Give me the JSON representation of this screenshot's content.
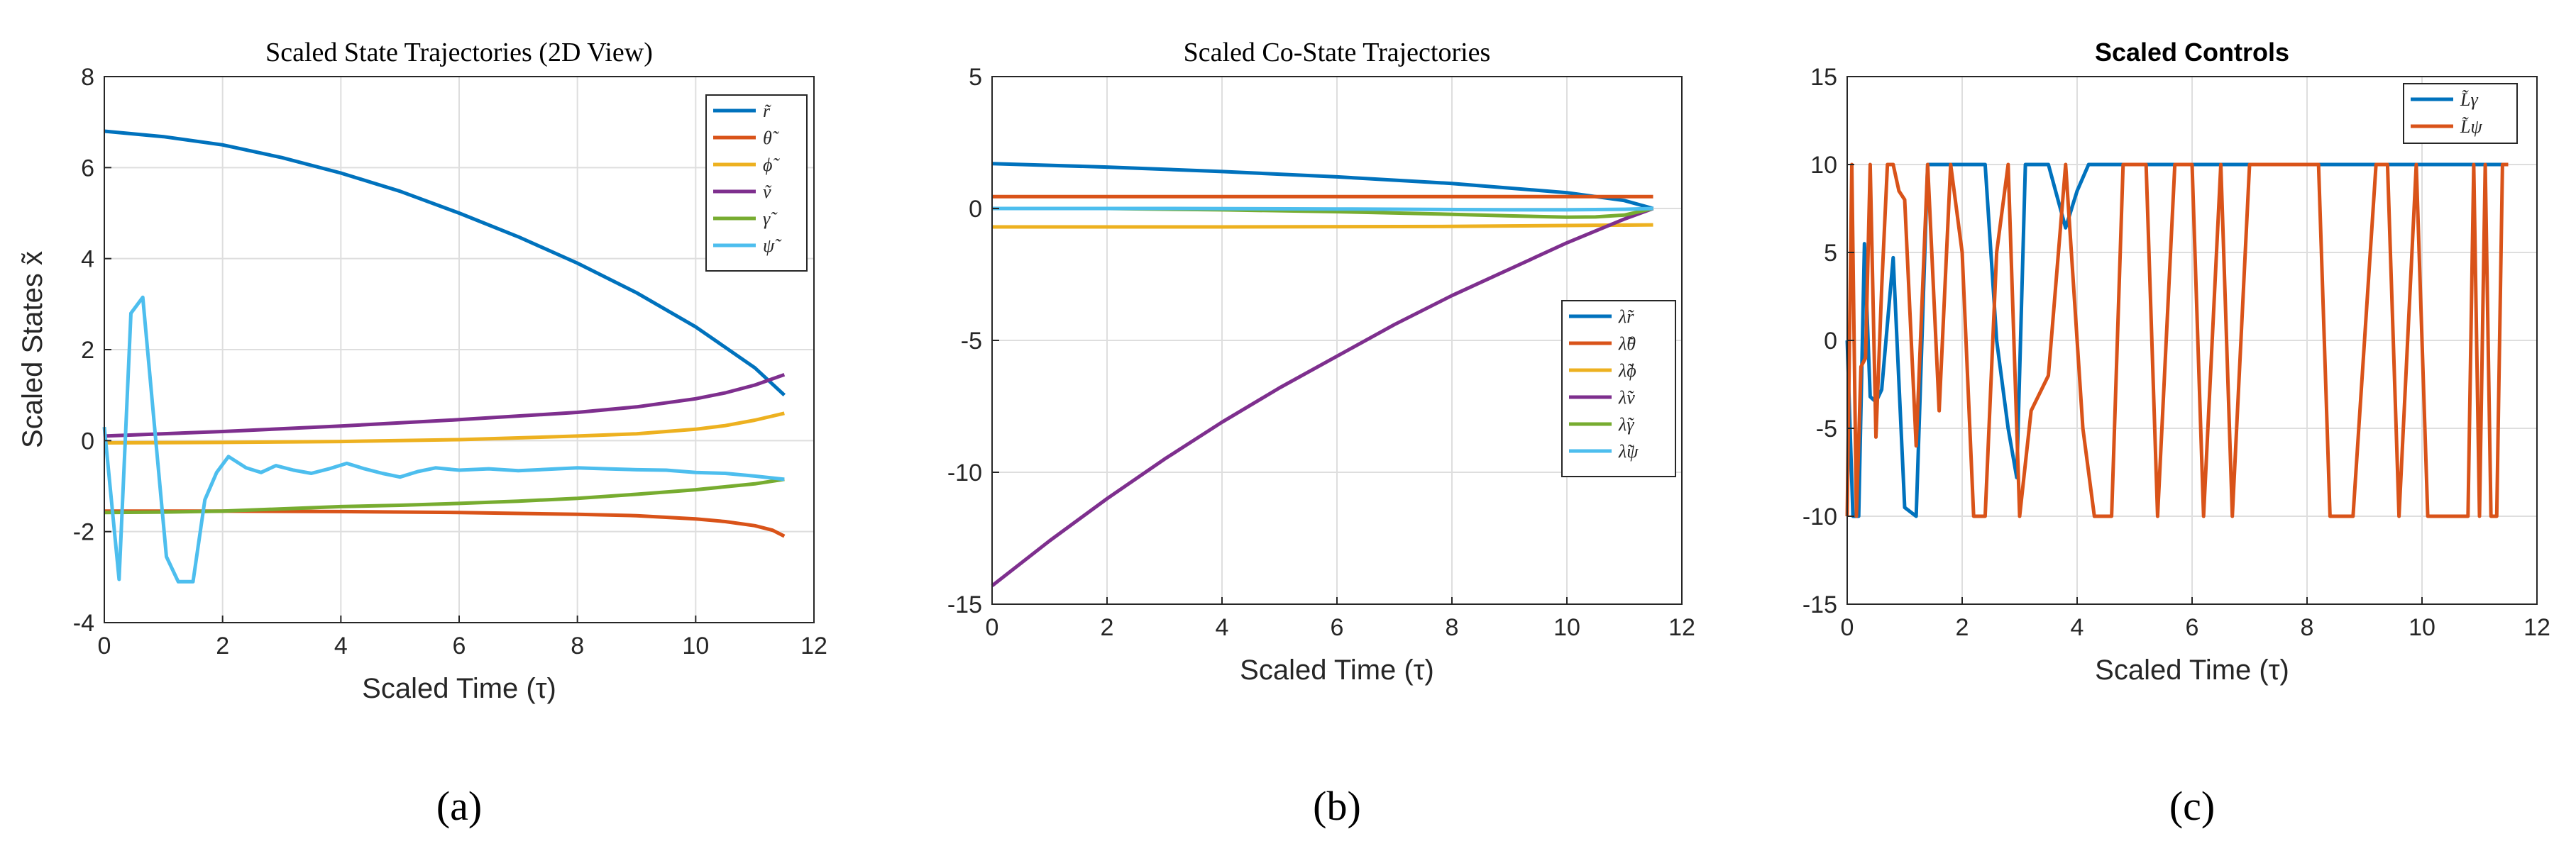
{
  "chart_data": [
    {
      "type": "line",
      "panel_label": "(a)",
      "title": "Scaled State Trajectories (2D View)",
      "title_style": "serif",
      "xlabel": "Scaled Time (τ)",
      "ylabel": "Scaled States x̃",
      "xlim": [
        0,
        12
      ],
      "ylim": [
        -4,
        8
      ],
      "xticks": [
        "0",
        "2",
        "4",
        "6",
        "8",
        "10",
        "12"
      ],
      "yticks": [
        "-4",
        "-2",
        "0",
        "2",
        "4",
        "6",
        "8"
      ],
      "grid": true,
      "legend_position": "top-right",
      "series": [
        {
          "name": "r̃",
          "color": "#0072BD",
          "x": [
            0,
            1,
            2,
            3,
            4,
            5,
            6,
            7,
            8,
            9,
            10,
            11,
            11.5
          ],
          "y": [
            6.8,
            6.68,
            6.5,
            6.22,
            5.88,
            5.48,
            5.0,
            4.48,
            3.9,
            3.25,
            2.5,
            1.6,
            1.0
          ]
        },
        {
          "name": "θ̃",
          "color": "#D95319",
          "x": [
            0,
            2,
            4,
            6,
            8,
            9,
            10,
            10.5,
            11,
            11.3,
            11.5
          ],
          "y": [
            -1.55,
            -1.55,
            -1.56,
            -1.58,
            -1.62,
            -1.65,
            -1.72,
            -1.78,
            -1.87,
            -1.97,
            -2.1
          ]
        },
        {
          "name": "ϕ̃",
          "color": "#EDB120",
          "x": [
            0,
            2,
            4,
            6,
            8,
            9,
            10,
            10.5,
            11,
            11.5
          ],
          "y": [
            -0.05,
            -0.04,
            -0.02,
            0.02,
            0.1,
            0.15,
            0.25,
            0.33,
            0.45,
            0.6
          ]
        },
        {
          "name": "ṽ",
          "color": "#7E2F8E",
          "x": [
            0,
            2,
            4,
            6,
            8,
            9,
            10,
            10.5,
            11,
            11.5
          ],
          "y": [
            0.1,
            0.2,
            0.32,
            0.46,
            0.62,
            0.74,
            0.92,
            1.05,
            1.22,
            1.45
          ]
        },
        {
          "name": "γ̃",
          "color": "#77AC30",
          "x": [
            0,
            1,
            2,
            3,
            4,
            5,
            6,
            7,
            8,
            9,
            10,
            11,
            11.5
          ],
          "y": [
            -1.58,
            -1.57,
            -1.55,
            -1.5,
            -1.45,
            -1.42,
            -1.38,
            -1.33,
            -1.27,
            -1.18,
            -1.08,
            -0.95,
            -0.85
          ]
        },
        {
          "name": "ψ̃",
          "color": "#4DBEEE",
          "x": [
            0,
            0.25,
            0.45,
            0.65,
            0.85,
            1.05,
            1.25,
            1.5,
            1.7,
            1.9,
            2.1,
            2.4,
            2.65,
            2.9,
            3.2,
            3.5,
            3.8,
            4.1,
            4.4,
            4.7,
            5.0,
            5.3,
            5.6,
            6.0,
            6.5,
            7.0,
            7.5,
            8.0,
            8.5,
            9.0,
            9.5,
            10.0,
            10.5,
            11.0,
            11.5
          ],
          "y": [
            0.3,
            -3.05,
            2.8,
            3.15,
            0.3,
            -2.55,
            -3.1,
            -3.1,
            -1.3,
            -0.7,
            -0.35,
            -0.6,
            -0.7,
            -0.55,
            -0.65,
            -0.72,
            -0.62,
            -0.5,
            -0.62,
            -0.72,
            -0.8,
            -0.68,
            -0.6,
            -0.65,
            -0.62,
            -0.66,
            -0.63,
            -0.6,
            -0.62,
            -0.64,
            -0.65,
            -0.7,
            -0.72,
            -0.78,
            -0.85
          ]
        }
      ]
    },
    {
      "type": "line",
      "panel_label": "(b)",
      "title": "Scaled Co-State Trajectories",
      "title_style": "serif",
      "xlabel": "Scaled Time (τ)",
      "ylabel": "",
      "xlim": [
        0,
        12
      ],
      "ylim": [
        -15,
        5
      ],
      "xticks": [
        "0",
        "2",
        "4",
        "6",
        "8",
        "10",
        "12"
      ],
      "yticks": [
        "-15",
        "-10",
        "-5",
        "0",
        "5"
      ],
      "grid": true,
      "legend_position": "right",
      "series": [
        {
          "name": "λ̃r",
          "color": "#0072BD",
          "x": [
            0,
            2,
            4,
            6,
            8,
            10,
            11,
            11.5
          ],
          "y": [
            1.7,
            1.57,
            1.4,
            1.2,
            0.95,
            0.6,
            0.3,
            0.0
          ]
        },
        {
          "name": "λ̃θ",
          "color": "#D95319",
          "x": [
            0,
            11.5
          ],
          "y": [
            0.45,
            0.45
          ]
        },
        {
          "name": "λ̃ϕ",
          "color": "#EDB120",
          "x": [
            0,
            4,
            8,
            11.5
          ],
          "y": [
            -0.7,
            -0.7,
            -0.68,
            -0.62
          ]
        },
        {
          "name": "λ̃v",
          "color": "#7E2F8E",
          "x": [
            0,
            1,
            2,
            3,
            4,
            5,
            6,
            7,
            8,
            9,
            10,
            11,
            11.5
          ],
          "y": [
            -14.3,
            -12.6,
            -11.0,
            -9.5,
            -8.1,
            -6.8,
            -5.6,
            -4.4,
            -3.3,
            -2.3,
            -1.3,
            -0.4,
            0.0
          ]
        },
        {
          "name": "λ̃γ",
          "color": "#77AC30",
          "x": [
            0,
            2,
            4,
            6,
            8,
            9,
            10,
            10.5,
            11,
            11.5
          ],
          "y": [
            0.0,
            0.0,
            -0.05,
            -0.12,
            -0.22,
            -0.28,
            -0.33,
            -0.32,
            -0.25,
            0.0
          ]
        },
        {
          "name": "λ̃ψ",
          "color": "#4DBEEE",
          "x": [
            0,
            3,
            6,
            9,
            10,
            11,
            11.5
          ],
          "y": [
            0.0,
            0.0,
            -0.02,
            -0.05,
            -0.05,
            -0.03,
            0.0
          ]
        }
      ]
    },
    {
      "type": "line",
      "panel_label": "(c)",
      "title": "Scaled Controls",
      "title_style": "sans-bold",
      "xlabel": "Scaled Time (τ)",
      "ylabel": "",
      "xlim": [
        0,
        12
      ],
      "ylim": [
        -15,
        15
      ],
      "xticks": [
        "0",
        "2",
        "4",
        "6",
        "8",
        "10",
        "12"
      ],
      "yticks": [
        "-15",
        "-10",
        "-5",
        "0",
        "5",
        "10",
        "15"
      ],
      "grid": true,
      "legend_position": "top-right",
      "series": [
        {
          "name": "L̃γ",
          "color": "#0072BD",
          "x": [
            0,
            0.1,
            0.2,
            0.3,
            0.4,
            0.5,
            0.6,
            0.8,
            1.0,
            1.2,
            1.4,
            1.6,
            1.8,
            2.0,
            2.2,
            2.4,
            2.6,
            2.8,
            2.95,
            3.1,
            3.3,
            3.5,
            3.8,
            4.0,
            4.2,
            11.5
          ],
          "y": [
            0,
            -10,
            -10,
            5.5,
            -3.2,
            -3.5,
            -2.8,
            4.7,
            -9.5,
            -10,
            10,
            10,
            10,
            10,
            10,
            10,
            0,
            -5,
            -7.8,
            10,
            10,
            10,
            6.4,
            8.5,
            10,
            10
          ]
        },
        {
          "name": "L̃ψ",
          "color": "#D95319",
          "x": [
            0,
            0.08,
            0.16,
            0.24,
            0.32,
            0.4,
            0.5,
            0.6,
            0.7,
            0.8,
            0.9,
            1.0,
            1.2,
            1.4,
            1.6,
            1.8,
            2.0,
            2.2,
            2.4,
            2.6,
            2.8,
            3.0,
            3.2,
            3.5,
            3.8,
            4.1,
            4.3,
            4.6,
            4.8,
            5.0,
            5.2,
            5.4,
            5.7,
            6.0,
            6.2,
            6.5,
            6.7,
            7.0,
            7.3,
            7.6,
            7.9,
            8.2,
            8.4,
            8.8,
            9.2,
            9.4,
            9.6,
            9.9,
            10.1,
            10.3,
            10.8,
            10.9,
            11.0,
            11.1,
            11.2,
            11.3,
            11.4,
            11.5
          ],
          "y": [
            -10,
            10,
            -10,
            -1.5,
            -1,
            10,
            -5.5,
            3,
            10,
            10,
            8.5,
            8,
            -6,
            10,
            -4,
            10,
            5,
            -10,
            -10,
            5,
            10,
            -10,
            -4,
            -2,
            10,
            -5,
            -10,
            -10,
            10,
            10,
            10,
            -10,
            10,
            10,
            -10,
            10,
            -10,
            10,
            10,
            10,
            10,
            10,
            -10,
            -10,
            10,
            10,
            -10,
            10,
            -10,
            -10,
            -10,
            10,
            -10,
            10,
            -10,
            -10,
            10,
            10
          ]
        }
      ]
    }
  ]
}
